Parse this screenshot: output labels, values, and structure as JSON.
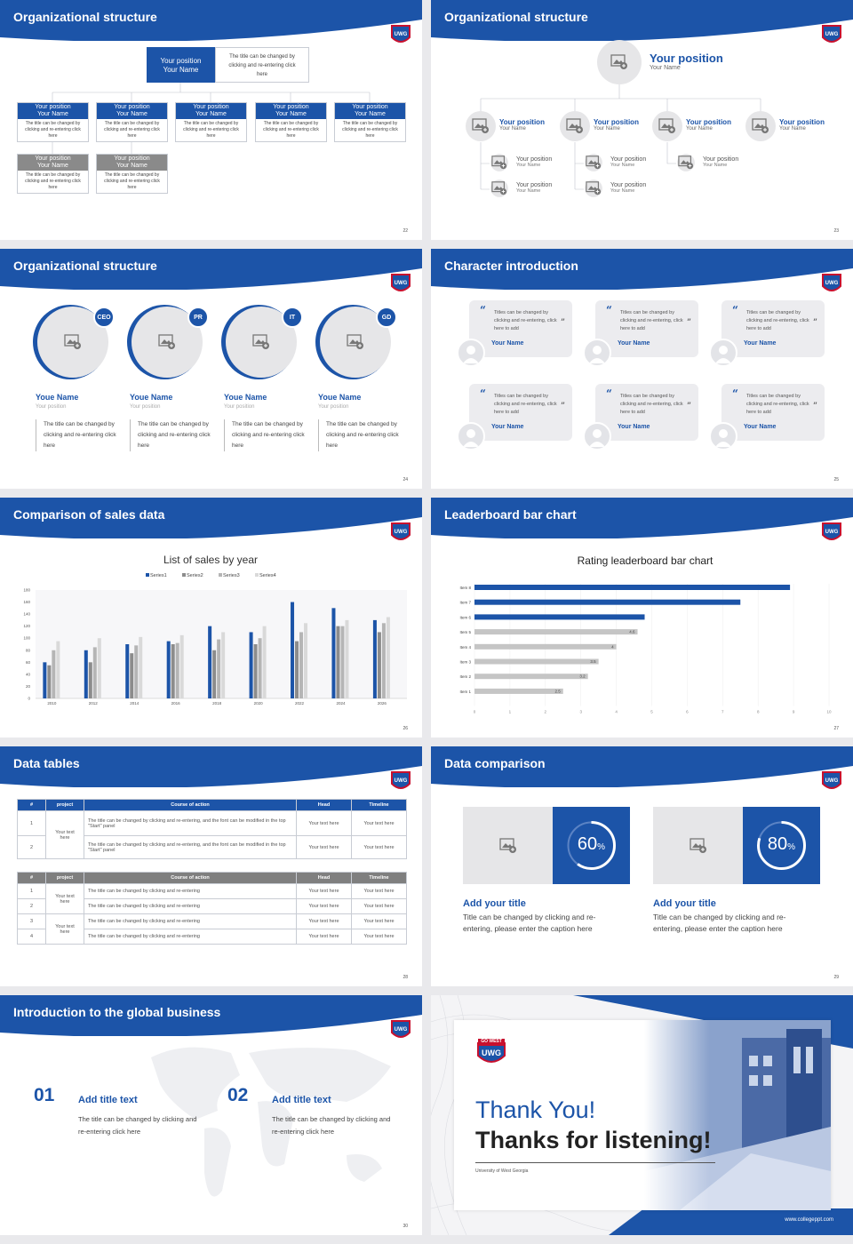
{
  "colors": {
    "accent": "#1c54a8",
    "gray": "#8a8a8a",
    "lightgray": "#e6e6e8"
  },
  "s22": {
    "title": "Organizational structure",
    "page": "22",
    "top": {
      "pos": "Your position",
      "name": "Your Name",
      "desc": "The title can be changed by clicking and re-entering click here"
    },
    "cards": [
      {
        "pos": "Your position",
        "name": "Your Name",
        "desc": "The title can be changed by clicking and re-entering click here"
      },
      {
        "pos": "Your position",
        "name": "Your Name",
        "desc": "The title can be changed by clicking and re-entering click here"
      },
      {
        "pos": "Your position",
        "name": "Your Name",
        "desc": "The title can be changed by clicking and re-entering click here"
      },
      {
        "pos": "Your position",
        "name": "Your Name",
        "desc": "The title can be changed by clicking and re-entering click here"
      },
      {
        "pos": "Your position",
        "name": "Your Name",
        "desc": "The title can be changed by clicking and re-entering click here"
      },
      {
        "pos": "Your position",
        "name": "Your Name",
        "desc": "The title can be changed by clicking and re-entering click here"
      },
      {
        "pos": "Your position",
        "name": "Your Name",
        "desc": "The title can be changed by clicking and re-entering click here"
      }
    ]
  },
  "s23": {
    "title": "Organizational structure",
    "page": "23",
    "top": {
      "pos": "Your position",
      "name": "Your Name"
    },
    "level": [
      {
        "pos": "Your position",
        "name": "Your Name"
      },
      {
        "pos": "Your position",
        "name": "Your Name"
      },
      {
        "pos": "Your position",
        "name": "Your Name"
      },
      {
        "pos": "Your position",
        "name": "Your Name"
      }
    ],
    "sub": [
      {
        "pos": "Your position",
        "name": "Your Name"
      },
      {
        "pos": "Your position",
        "name": "Your Name"
      },
      {
        "pos": "Your position",
        "name": "Your Name"
      },
      {
        "pos": "Your position",
        "name": "Your Name"
      },
      {
        "pos": "Your position",
        "name": "Your Name"
      }
    ]
  },
  "s24": {
    "title": "Organizational structure",
    "page": "24",
    "people": [
      {
        "badge": "CEO",
        "name": "Youe Name",
        "pos": "Your position",
        "desc": "The title can be changed by clicking and re-entering click here"
      },
      {
        "badge": "PR",
        "name": "Youe Name",
        "pos": "Your position",
        "desc": "The title can be changed by clicking and re-entering click here"
      },
      {
        "badge": "IT",
        "name": "Youe Name",
        "pos": "Your position",
        "desc": "The title can be changed by clicking and re-entering click here"
      },
      {
        "badge": "GD",
        "name": "Youe Name",
        "pos": "Your position",
        "desc": "The title can be changed by clicking and re-entering click here"
      }
    ]
  },
  "s25": {
    "title": "Character introduction",
    "page": "25",
    "quotes": [
      {
        "text": "Titles can be changed by clicking and re-entering, click here to add",
        "name": "Your Name"
      },
      {
        "text": "Titles can be changed by clicking and re-entering, click here to add",
        "name": "Your Name"
      },
      {
        "text": "Titles can be changed by clicking and re-entering, click here to add",
        "name": "Your Name"
      },
      {
        "text": "Titles can be changed by clicking and re-entering, click here to add",
        "name": "Your Name"
      },
      {
        "text": "Titles can be changed by clicking and re-entering, click here to add",
        "name": "Your Name"
      },
      {
        "text": "Titles can be changed by clicking and re-entering, click here to add",
        "name": "Your Name"
      }
    ]
  },
  "s26": {
    "title": "Comparison of sales data",
    "page": "26"
  },
  "s27": {
    "title": "Leaderboard bar chart",
    "page": "27"
  },
  "chart_data": [
    {
      "type": "bar",
      "title": "List of sales by year",
      "categories": [
        "2010",
        "2012",
        "2014",
        "2016",
        "2018",
        "2020",
        "2022",
        "2024",
        "2026"
      ],
      "series": [
        {
          "name": "Series1",
          "color": "#1c54a8",
          "values": [
            60,
            80,
            90,
            95,
            120,
            110,
            160,
            150,
            130
          ]
        },
        {
          "name": "Series2",
          "color": "#8c8c8c",
          "values": [
            55,
            60,
            75,
            90,
            80,
            90,
            95,
            120,
            110
          ]
        },
        {
          "name": "Series3",
          "color": "#b5b5b5",
          "values": [
            80,
            85,
            88,
            92,
            98,
            100,
            110,
            120,
            125
          ]
        },
        {
          "name": "Series4",
          "color": "#d9d9d9",
          "values": [
            95,
            100,
            102,
            105,
            110,
            120,
            125,
            130,
            135
          ]
        }
      ],
      "ylim": [
        0,
        180
      ],
      "yticks": [
        0,
        20,
        40,
        60,
        80,
        100,
        120,
        140,
        160,
        180
      ],
      "legend": "top",
      "grid": false
    },
    {
      "type": "bar",
      "orientation": "horizontal",
      "title": "Rating leaderboard bar chart",
      "categories": [
        "Item 8",
        "Item 7",
        "Item 6",
        "Item 5",
        "Item 4",
        "Item 3",
        "Item 2",
        "Item 1"
      ],
      "values": [
        8.9,
        7.5,
        4.8,
        4.6,
        4,
        3.5,
        3.2,
        2.5
      ],
      "labels": [
        "",
        "",
        "",
        "4.6",
        "4",
        "3.5",
        "3.2",
        "2.5"
      ],
      "xlim": [
        0,
        10
      ],
      "xticks": [
        0,
        1,
        2,
        3,
        4,
        5,
        6,
        7,
        8,
        9,
        10
      ],
      "highlight_count": 3
    }
  ],
  "s28": {
    "title": "Data tables",
    "page": "28",
    "t1": {
      "head": [
        "#",
        "project",
        "Course of action",
        "Head",
        "Timeline"
      ],
      "rows": [
        {
          "n": "1",
          "proj": "Your text here",
          "action": "The title can be changed by clicking and re-entering, and the font can be modified in the top \"Start\" panel",
          "head": "Your text here",
          "time": "Your text here"
        },
        {
          "n": "2",
          "proj": "",
          "action": "The title can be changed by clicking and re-entering, and the font can be modified in the top \"Start\" panel",
          "head": "Your text here",
          "time": "Your text here"
        }
      ]
    },
    "t2": {
      "head": [
        "#",
        "project",
        "Course of action",
        "Head",
        "Timeline"
      ],
      "rows": [
        {
          "n": "1",
          "proj": "Your text here",
          "action": "The title can be changed by clicking and re-entering",
          "head": "Your text here",
          "time": "Your text here"
        },
        {
          "n": "2",
          "proj": "",
          "action": "The title can be changed by clicking and re-entering",
          "head": "Your text here",
          "time": "Your text here"
        },
        {
          "n": "3",
          "proj": "Your text here",
          "action": "The title can be changed by clicking and re-entering",
          "head": "Your text here",
          "time": "Your text here"
        },
        {
          "n": "4",
          "proj": "",
          "action": "The title can be changed by clicking and re-entering",
          "head": "Your text here",
          "time": "Your text here"
        }
      ]
    }
  },
  "s29": {
    "title": "Data comparison",
    "page": "29",
    "items": [
      {
        "pct": "60",
        "unit": "%",
        "value": 0.6,
        "title": "Add your title",
        "desc": "Title can be changed by clicking and re-entering, please enter the caption here"
      },
      {
        "pct": "80",
        "unit": "%",
        "value": 0.8,
        "title": "Add your title",
        "desc": "Title can be changed by clicking and re-entering, please enter the caption here"
      }
    ]
  },
  "s30": {
    "title": "Introduction to the global business",
    "page": "30",
    "items": [
      {
        "num": "01",
        "title": "Add title text",
        "desc": "The title can be changed by clicking and re-entering click here"
      },
      {
        "num": "02",
        "title": "Add title text",
        "desc": "The title can be changed by clicking and re-entering click here"
      }
    ]
  },
  "s31": {
    "thanks": "Thank You!",
    "sub": "Thanks for listening!",
    "school": "University of West Georgia",
    "url": "www.collegeppt.com",
    "logo_top": "GO WEST",
    "logo_main": "UWG"
  }
}
